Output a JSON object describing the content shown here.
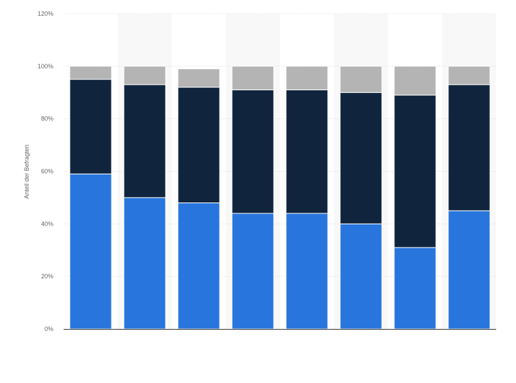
{
  "chart_data": {
    "type": "bar",
    "stacked": true,
    "categories": [
      "",
      "",
      "",
      "",
      "",
      "",
      "",
      ""
    ],
    "series": [
      {
        "color": "#2876dd",
        "values": [
          59,
          50,
          48,
          44,
          44,
          40,
          31,
          45
        ]
      },
      {
        "color": "#10253d",
        "values": [
          36,
          43,
          44,
          47,
          47,
          50,
          58,
          48
        ]
      },
      {
        "color": "#b4b4b4",
        "values": [
          5,
          7,
          7,
          9,
          9,
          10,
          11,
          7
        ]
      }
    ],
    "title": "",
    "xlabel": "",
    "ylabel": "Anteil der Befragten",
    "ylim": [
      0,
      120
    ],
    "yticks": [
      "0%",
      "20%",
      "40%",
      "60%",
      "80%",
      "100%",
      "120%"
    ],
    "grid": true,
    "legend": "none"
  }
}
